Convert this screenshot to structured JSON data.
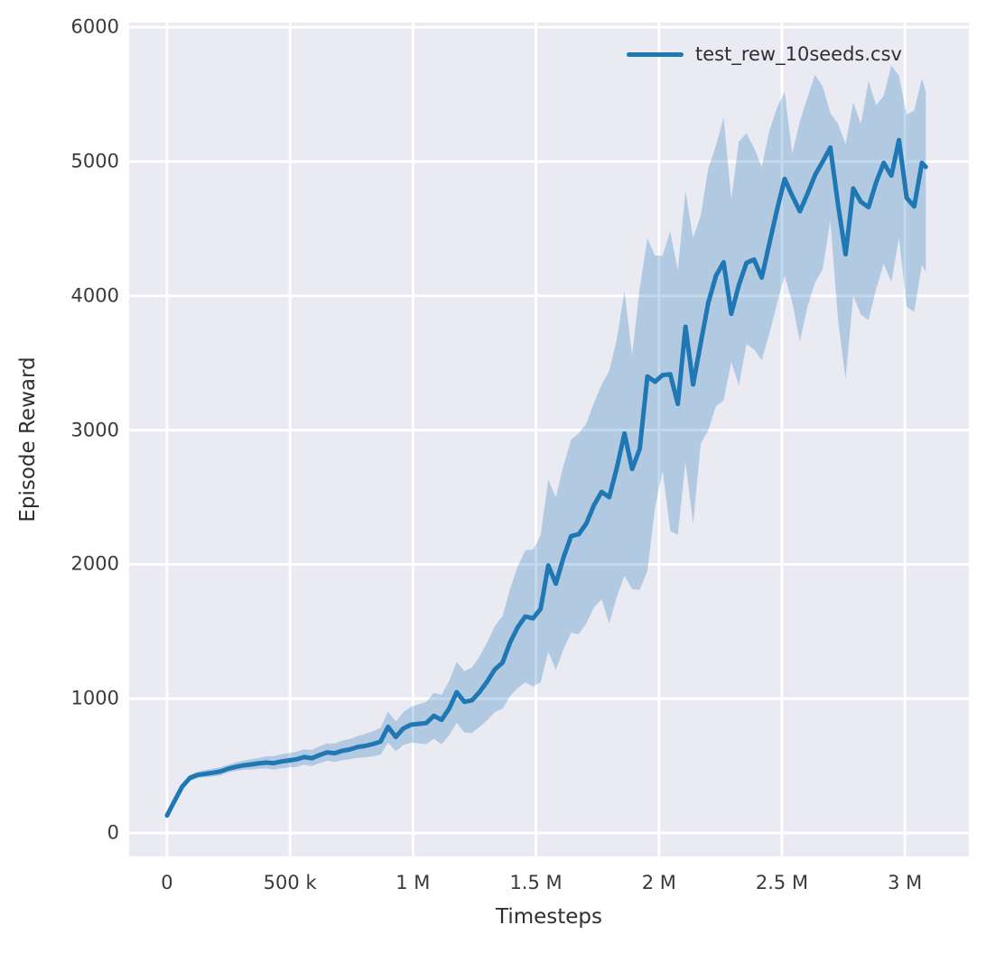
{
  "colors": {
    "figure_bg": "#ffffff",
    "plot_bg": "#eaeaf2",
    "grid": "#ffffff",
    "text": "#2f2f2f",
    "accent_blue": "#1f77b4"
  },
  "chart_data": {
    "type": "line",
    "title": "",
    "xlabel": "Timesteps",
    "ylabel": "Episode Reward",
    "grid": true,
    "style": "seaborn-darkgrid",
    "xlim": [
      -154000,
      3260000
    ],
    "ylim": [
      -175,
      6035
    ],
    "x_ticks": {
      "values": [
        0,
        500000,
        1000000,
        1500000,
        2000000,
        2500000,
        3000000
      ],
      "labels": [
        "0",
        "500 k",
        "1 M",
        "1.5 M",
        "2 M",
        "2.5 M",
        "3 M"
      ]
    },
    "y_ticks": {
      "values": [
        0,
        1000,
        2000,
        3000,
        4000,
        5000,
        6000
      ],
      "labels": [
        "0",
        "1000",
        "2000",
        "3000",
        "4000",
        "5000",
        "6000"
      ]
    },
    "legend": {
      "position": "upper right"
    },
    "series": [
      {
        "name": "test_rew_10seeds.csv",
        "color": "#1f77b4",
        "band_color": "#1f77b4",
        "band_alpha": 0.27,
        "x": [
          0,
          31000,
          62000,
          93000,
          124000,
          155000,
          186000,
          217000,
          248000,
          279000,
          310000,
          341000,
          372000,
          403000,
          434000,
          465000,
          496000,
          527000,
          558000,
          589000,
          620000,
          651000,
          682000,
          713000,
          744000,
          775000,
          806000,
          837000,
          868000,
          899000,
          930000,
          961000,
          992000,
          1023000,
          1054000,
          1085000,
          1116000,
          1147000,
          1178000,
          1209000,
          1240000,
          1271000,
          1302000,
          1333000,
          1364000,
          1395000,
          1426000,
          1457000,
          1488000,
          1519000,
          1550000,
          1581000,
          1612000,
          1643000,
          1674000,
          1705000,
          1736000,
          1767000,
          1798000,
          1829000,
          1860000,
          1891000,
          1922000,
          1953000,
          1984000,
          2015000,
          2046000,
          2077000,
          2108000,
          2139000,
          2170000,
          2201000,
          2232000,
          2263000,
          2294000,
          2325000,
          2356000,
          2387000,
          2418000,
          2449000,
          2480000,
          2511000,
          2542000,
          2573000,
          2604000,
          2635000,
          2666000,
          2697000,
          2728000,
          2759000,
          2790000,
          2821000,
          2852000,
          2883000,
          2914000,
          2945000,
          2976000,
          3007000,
          3038000,
          3069000,
          3085000
        ],
        "y_mean": [
          130,
          240,
          345,
          410,
          432,
          440,
          448,
          458,
          478,
          492,
          503,
          510,
          518,
          524,
          520,
          532,
          540,
          548,
          565,
          556,
          580,
          600,
          594,
          612,
          622,
          640,
          648,
          662,
          680,
          790,
          715,
          778,
          806,
          812,
          818,
          872,
          842,
          926,
          1048,
          976,
          988,
          1050,
          1128,
          1218,
          1268,
          1420,
          1532,
          1612,
          1598,
          1668,
          1992,
          1856,
          2052,
          2210,
          2225,
          2305,
          2442,
          2540,
          2500,
          2720,
          2975,
          2710,
          2860,
          3400,
          3360,
          3410,
          3415,
          3195,
          3770,
          3340,
          3650,
          3950,
          4150,
          4250,
          3866,
          4080,
          4245,
          4270,
          4135,
          4390,
          4640,
          4870,
          4745,
          4630,
          4760,
          4900,
          5000,
          5105,
          4680,
          4310,
          4800,
          4700,
          4660,
          4845,
          4990,
          4895,
          5160,
          4730,
          4665,
          4990,
          4960
        ],
        "y_low": [
          110,
          215,
          320,
          388,
          408,
          415,
          420,
          428,
          450,
          462,
          470,
          472,
          478,
          480,
          472,
          482,
          488,
          492,
          508,
          498,
          520,
          538,
          528,
          542,
          548,
          560,
          562,
          570,
          582,
          672,
          608,
          655,
          672,
          668,
          662,
          700,
          660,
          726,
          820,
          748,
          745,
          790,
          840,
          900,
          925,
          1020,
          1080,
          1120,
          1090,
          1120,
          1350,
          1215,
          1370,
          1490,
          1480,
          1560,
          1680,
          1740,
          1560,
          1760,
          1915,
          1815,
          1810,
          1950,
          2420,
          2700,
          2250,
          2218,
          2760,
          2300,
          2900,
          3000,
          3180,
          3220,
          3510,
          3330,
          3640,
          3600,
          3520,
          3720,
          3940,
          4150,
          3950,
          3660,
          3920,
          4100,
          4200,
          4560,
          3820,
          3380,
          4000,
          3860,
          3820,
          4050,
          4240,
          4100,
          4430,
          3920,
          3880,
          4230,
          4180
        ],
        "y_high": [
          155,
          262,
          368,
          430,
          455,
          468,
          478,
          490,
          508,
          525,
          538,
          548,
          558,
          570,
          572,
          585,
          595,
          605,
          622,
          618,
          645,
          668,
          665,
          688,
          700,
          722,
          738,
          758,
          782,
          905,
          830,
          900,
          940,
          958,
          975,
          1045,
          1028,
          1130,
          1275,
          1205,
          1232,
          1315,
          1420,
          1540,
          1615,
          1820,
          1985,
          2105,
          2110,
          2215,
          2630,
          2500,
          2735,
          2930,
          2975,
          3050,
          3205,
          3340,
          3440,
          3680,
          4035,
          3560,
          4060,
          4430,
          4300,
          4300,
          4480,
          4190,
          4780,
          4430,
          4600,
          4950,
          5120,
          5330,
          4720,
          5150,
          5210,
          5100,
          4960,
          5230,
          5400,
          5520,
          5060,
          5300,
          5480,
          5645,
          5560,
          5360,
          5280,
          5130,
          5440,
          5280,
          5600,
          5420,
          5490,
          5713,
          5640,
          5350,
          5380,
          5620,
          5520
        ]
      }
    ]
  }
}
